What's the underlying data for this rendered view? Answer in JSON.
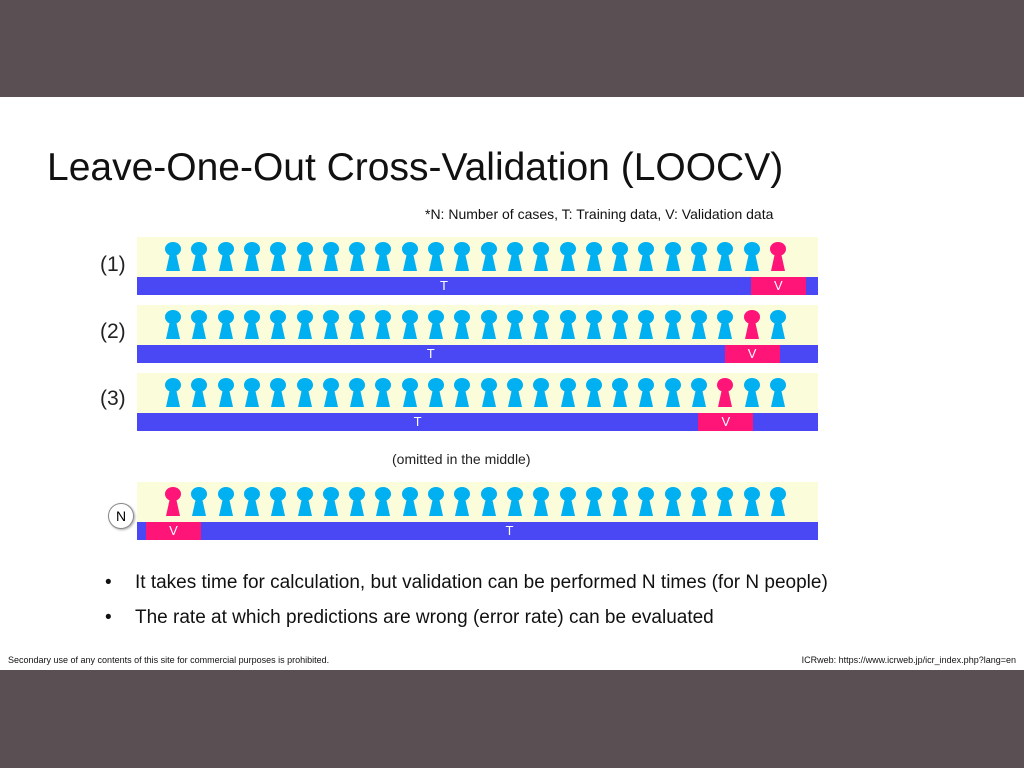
{
  "title": "Leave-One-Out Cross-Validation (LOOCV)",
  "note": "*N: Number of cases, T: Training data, V: Validation data",
  "figures_per_row": 24,
  "colors": {
    "training": "#00b0f0",
    "validation": "#ff1478",
    "bar": "#4a48f5",
    "track": "#fbfcd9"
  },
  "rows": [
    {
      "label": "(1)",
      "validation_index": 23,
      "T": "T",
      "V": "V"
    },
    {
      "label": "(2)",
      "validation_index": 22,
      "T": "T",
      "V": "V"
    },
    {
      "label": "(3)",
      "validation_index": 21,
      "T": "T",
      "V": "V"
    },
    {
      "label": "N",
      "validation_index": 0,
      "T": "T",
      "V": "V"
    }
  ],
  "omitted": "(omitted in the middle)",
  "bullets": [
    "It takes time for calculation, but validation can be performed N times (for N people)",
    "The rate at which predictions are wrong (error rate) can be evaluated"
  ],
  "footer_left": "Secondary use of any contents of this site for commercial purposes is prohibited.",
  "footer_right": "ICRweb: https://www.icrweb.jp/icr_index.php?lang=en"
}
